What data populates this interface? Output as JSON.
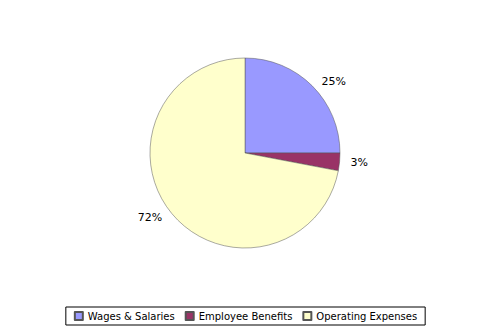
{
  "chart_data": {
    "type": "pie",
    "categories": [
      "Wages & Salaries",
      "Employee Benefits",
      "Operating Expenses"
    ],
    "values": [
      25,
      3,
      72
    ],
    "value_labels": [
      "25%",
      "3%",
      "72%"
    ],
    "colors": [
      "#9999ff",
      "#993366",
      "#ffffcc"
    ],
    "data_labels": true,
    "legend": "bottom"
  }
}
